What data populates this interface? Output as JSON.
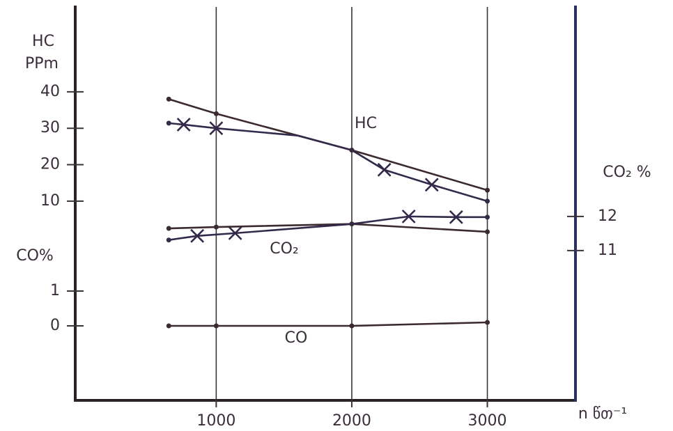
{
  "chart_data": {
    "type": "line",
    "x_label": "n წთ⁻¹",
    "xlim": [
      -40,
      3650
    ],
    "xticks": [
      1000,
      2000,
      3000
    ],
    "y_axes": [
      {
        "name": "HC",
        "unit": "PPm",
        "lim": [
          -44.7,
          63.3
        ],
        "ticks": [
          10,
          20,
          30,
          40
        ],
        "side": "left"
      },
      {
        "name": "CO%",
        "lim": [
          -2.14,
          9.16
        ],
        "ticks": [
          0,
          1
        ],
        "side": "left"
      },
      {
        "name": "CO₂ %",
        "lim": [
          6.61,
          18.14
        ],
        "ticks": [
          11,
          12
        ],
        "side": "right"
      }
    ],
    "series": [
      {
        "axis": 0,
        "color": "#3b2a2e",
        "x": [
          650,
          1000,
          1600,
          2000,
          3000
        ],
        "values": [
          38,
          34,
          28,
          24,
          13
        ],
        "markers": [
          "dot",
          "dot",
          "none",
          "dot",
          "dot"
        ]
      },
      {
        "axis": 0,
        "color": "#33294a",
        "x": [
          650,
          760,
          1000,
          1600,
          2000,
          2240,
          2590,
          3000
        ],
        "values": [
          31.4,
          31,
          30,
          28,
          24,
          18.6,
          14.5,
          10
        ],
        "markers": [
          "dot",
          "x",
          "x",
          "none",
          "none",
          "x",
          "x",
          "dot"
        ]
      },
      {
        "axis": 2,
        "color": "#3b2a2e",
        "x": [
          650,
          1000,
          2000,
          3000
        ],
        "values": [
          11.65,
          11.69,
          11.78,
          11.55
        ],
        "markers": [
          "dot",
          "dot",
          "dot",
          "dot"
        ]
      },
      {
        "axis": 2,
        "color": "#33294a",
        "x": [
          650,
          860,
          1140,
          2000,
          2420,
          2770,
          3000
        ],
        "values": [
          11.31,
          11.43,
          11.51,
          11.78,
          12,
          11.98,
          11.98
        ],
        "markers": [
          "dot",
          "x",
          "x",
          "none",
          "x",
          "x",
          "dot"
        ]
      },
      {
        "axis": 1,
        "color": "#3b2a2e",
        "x": [
          650,
          1000,
          2000,
          3000
        ],
        "values": [
          0,
          0,
          0,
          0.1
        ],
        "markers": [
          "dot",
          "dot",
          "dot",
          "dot"
        ]
      }
    ],
    "annotations": [
      "HC",
      "CO₂",
      "CO"
    ]
  }
}
